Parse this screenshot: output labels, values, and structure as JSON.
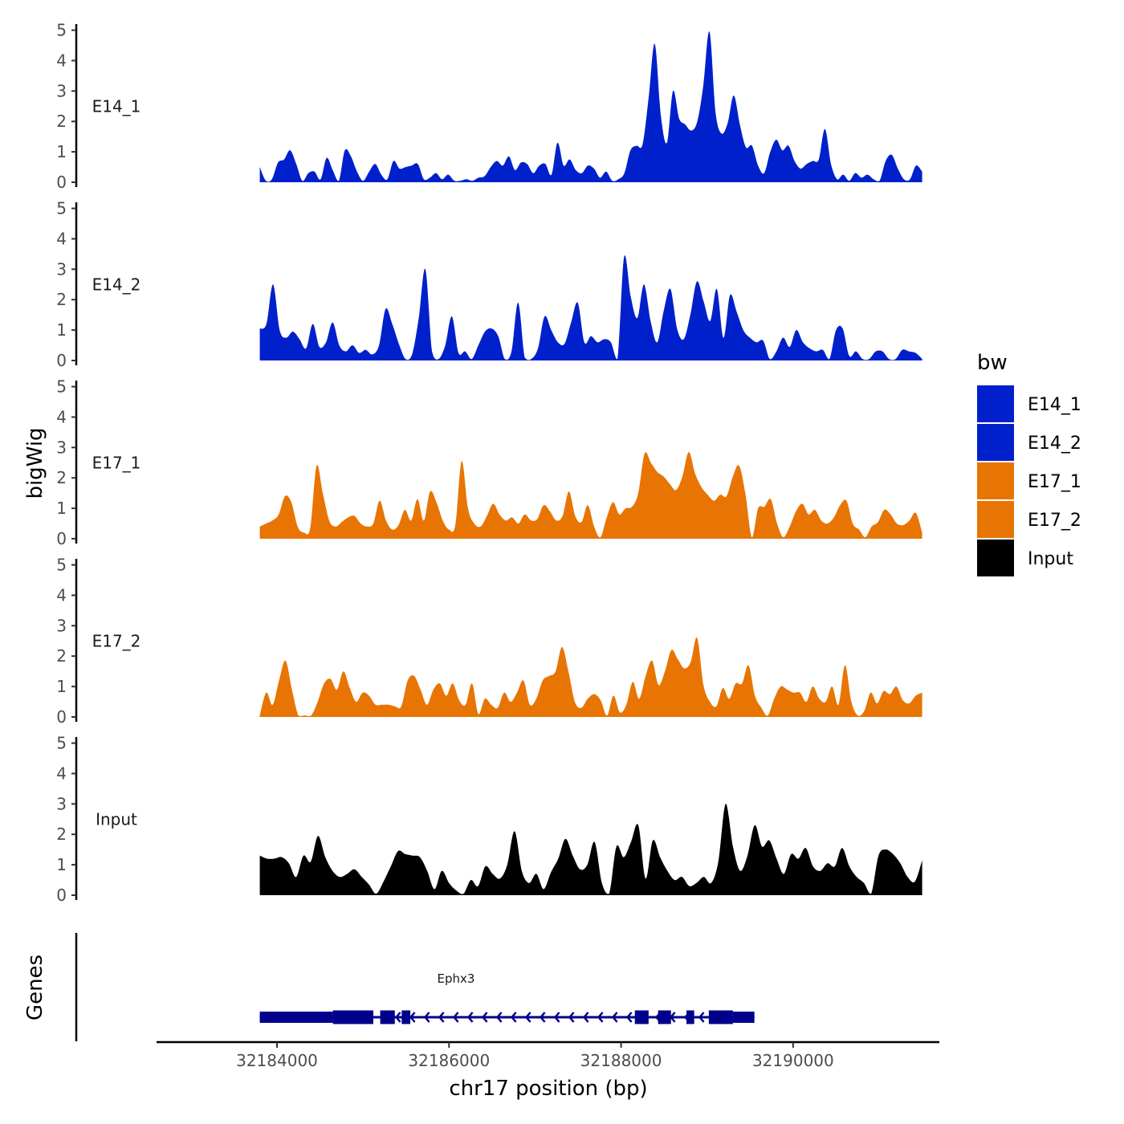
{
  "chart_data": {
    "type": "area",
    "chromosome": "chr17",
    "x_range": [
      32183800,
      32191500
    ],
    "xlim": [
      32182600,
      32191700
    ],
    "ylim": [
      0,
      5.2
    ],
    "y_ticks": [
      "0",
      "1",
      "2",
      "3",
      "4",
      "5"
    ],
    "x_ticks": [
      {
        "value": 32184000,
        "label": "32184000"
      },
      {
        "value": 32186000,
        "label": "32186000"
      },
      {
        "value": 32188000,
        "label": "32188000"
      },
      {
        "value": 32190000,
        "label": "32190000"
      }
    ],
    "ylabel": "bigWig",
    "genes_label": "Genes",
    "xlabel": "chr17 position (bp)",
    "legend": {
      "title": "bw",
      "entries": [
        {
          "label": "E14_1",
          "color": "#0020CC"
        },
        {
          "label": "E14_2",
          "color": "#0020CC"
        },
        {
          "label": "E17_1",
          "color": "#E87503"
        },
        {
          "label": "E17_2",
          "color": "#E87503"
        },
        {
          "label": "Input",
          "color": "#000000"
        }
      ]
    },
    "tracks": [
      {
        "name": "E14_1",
        "color": "#0020CC",
        "values": [
          0.5,
          0.05,
          0.1,
          0.65,
          0.75,
          1.05,
          0.6,
          0.05,
          0.3,
          0.35,
          0.1,
          0.8,
          0.4,
          0.05,
          1.05,
          0.85,
          0.35,
          0.05,
          0.35,
          0.6,
          0.25,
          0.1,
          0.7,
          0.45,
          0.5,
          0.55,
          0.6,
          0.1,
          0.15,
          0.3,
          0.1,
          0.25,
          0.05,
          0.05,
          0.1,
          0.05,
          0.15,
          0.2,
          0.5,
          0.7,
          0.55,
          0.85,
          0.4,
          0.65,
          0.6,
          0.3,
          0.55,
          0.6,
          0.25,
          1.3,
          0.55,
          0.75,
          0.4,
          0.3,
          0.55,
          0.45,
          0.15,
          0.35,
          0.05,
          0.1,
          0.3,
          1.05,
          1.2,
          1.25,
          2.8,
          4.55,
          2.2,
          1.3,
          3.0,
          2.1,
          1.9,
          1.7,
          2.0,
          3.2,
          4.95,
          2.3,
          1.6,
          1.95,
          2.85,
          1.9,
          1.15,
          1.2,
          0.55,
          0.3,
          1.0,
          1.4,
          1.05,
          1.2,
          0.7,
          0.45,
          0.6,
          0.7,
          0.75,
          1.75,
          0.6,
          0.1,
          0.25,
          0.05,
          0.3,
          0.15,
          0.25,
          0.1,
          0.05,
          0.7,
          0.9,
          0.45,
          0.1,
          0.1,
          0.55,
          0.35
        ]
      },
      {
        "name": "E14_2",
        "color": "#0020CC",
        "values": [
          1.05,
          1.2,
          2.5,
          1.0,
          0.75,
          0.95,
          0.7,
          0.4,
          1.2,
          0.45,
          0.6,
          1.25,
          0.5,
          0.3,
          0.5,
          0.25,
          0.35,
          0.2,
          0.5,
          1.7,
          1.2,
          0.55,
          0.05,
          0.2,
          1.4,
          3.0,
          0.3,
          0.05,
          0.5,
          1.45,
          0.25,
          0.3,
          0.05,
          0.5,
          0.95,
          1.05,
          0.8,
          0.05,
          0.3,
          1.9,
          0.1,
          0.05,
          0.4,
          1.45,
          1.0,
          0.6,
          0.55,
          1.25,
          1.9,
          0.6,
          0.8,
          0.6,
          0.7,
          0.6,
          0.05,
          3.4,
          2.1,
          1.4,
          2.5,
          1.3,
          0.6,
          1.65,
          2.35,
          1.05,
          0.7,
          1.5,
          2.6,
          1.95,
          1.3,
          2.35,
          0.75,
          2.15,
          1.6,
          1.0,
          0.75,
          0.6,
          0.65,
          0.05,
          0.3,
          0.75,
          0.45,
          1.0,
          0.6,
          0.4,
          0.3,
          0.35,
          0.05,
          1.0,
          1.05,
          0.15,
          0.3,
          0.05,
          0.05,
          0.3,
          0.3,
          0.05,
          0.05,
          0.35,
          0.3,
          0.25,
          0.05
        ]
      },
      {
        "name": "E17_1",
        "color": "#E87503",
        "values": [
          0.4,
          0.5,
          0.6,
          0.8,
          1.4,
          1.2,
          0.4,
          0.2,
          0.35,
          2.4,
          1.5,
          0.6,
          0.4,
          0.55,
          0.7,
          0.75,
          0.5,
          0.4,
          0.5,
          1.25,
          0.6,
          0.3,
          0.45,
          0.95,
          0.6,
          1.3,
          0.6,
          1.55,
          1.2,
          0.6,
          0.3,
          0.45,
          2.55,
          1.0,
          0.5,
          0.4,
          0.75,
          1.15,
          0.8,
          0.6,
          0.7,
          0.5,
          0.8,
          0.6,
          0.65,
          1.1,
          0.9,
          0.6,
          0.75,
          1.55,
          0.75,
          0.55,
          1.1,
          0.4,
          0.05,
          0.7,
          1.2,
          0.8,
          1.0,
          1.05,
          1.5,
          2.8,
          2.5,
          2.2,
          2.05,
          1.8,
          1.6,
          2.05,
          2.85,
          2.15,
          1.7,
          1.45,
          1.25,
          1.45,
          1.4,
          2.05,
          2.4,
          1.45,
          0.05,
          1.0,
          1.05,
          1.3,
          0.5,
          0.05,
          0.4,
          0.9,
          1.15,
          0.8,
          0.95,
          0.6,
          0.5,
          0.7,
          1.1,
          1.25,
          0.5,
          0.3,
          0.05,
          0.4,
          0.55,
          0.95,
          0.8,
          0.5,
          0.45,
          0.6,
          0.85,
          0.2
        ]
      },
      {
        "name": "E17_2",
        "color": "#E87503",
        "values": [
          0.05,
          0.8,
          0.4,
          1.2,
          1.85,
          0.9,
          0.05,
          0.05,
          0.05,
          0.5,
          1.1,
          1.25,
          0.9,
          1.5,
          0.95,
          0.5,
          0.8,
          0.7,
          0.4,
          0.4,
          0.4,
          0.35,
          0.35,
          1.2,
          1.35,
          0.9,
          0.4,
          0.9,
          1.1,
          0.7,
          1.1,
          0.55,
          0.4,
          1.1,
          0.1,
          0.6,
          0.4,
          0.3,
          0.8,
          0.5,
          0.8,
          1.2,
          0.4,
          0.6,
          1.2,
          1.35,
          1.5,
          2.3,
          1.5,
          0.5,
          0.3,
          0.6,
          0.75,
          0.55,
          0.05,
          0.7,
          0.15,
          0.4,
          1.15,
          0.6,
          1.35,
          1.85,
          1.05,
          1.5,
          2.2,
          1.9,
          1.6,
          1.8,
          2.6,
          1.05,
          0.5,
          0.35,
          0.95,
          0.6,
          1.1,
          1.1,
          1.7,
          0.7,
          0.3,
          0.05,
          0.6,
          1.0,
          0.9,
          0.8,
          0.8,
          0.5,
          1.0,
          0.6,
          0.5,
          1.0,
          0.4,
          1.7,
          0.5,
          0.05,
          0.2,
          0.8,
          0.45,
          0.85,
          0.75,
          1.0,
          0.55,
          0.45,
          0.7,
          0.8
        ]
      },
      {
        "name": "Input",
        "color": "#000000",
        "values": [
          1.3,
          1.2,
          1.2,
          1.25,
          1.05,
          0.6,
          1.3,
          1.1,
          1.95,
          1.25,
          0.8,
          0.6,
          0.7,
          0.85,
          0.6,
          0.35,
          0.05,
          0.45,
          0.95,
          1.45,
          1.35,
          1.3,
          1.25,
          0.8,
          0.2,
          0.8,
          0.4,
          0.15,
          0.05,
          0.5,
          0.3,
          0.95,
          0.7,
          0.55,
          1.0,
          2.1,
          0.8,
          0.4,
          0.7,
          0.2,
          0.75,
          1.2,
          1.85,
          1.3,
          0.85,
          1.0,
          1.75,
          0.4,
          0.05,
          1.6,
          1.25,
          1.75,
          2.3,
          0.55,
          1.8,
          1.25,
          0.8,
          0.5,
          0.6,
          0.3,
          0.4,
          0.6,
          0.4,
          1.1,
          3.0,
          1.6,
          0.8,
          1.3,
          2.3,
          1.6,
          1.8,
          1.2,
          0.7,
          1.35,
          1.2,
          1.55,
          0.95,
          0.8,
          1.05,
          0.95,
          1.55,
          0.95,
          0.6,
          0.4,
          0.05,
          1.3,
          1.5,
          1.35,
          1.05,
          0.6,
          0.45,
          1.15
        ]
      }
    ],
    "gene": {
      "name": "Ephx3",
      "color": "#00008B",
      "strand": "-",
      "start": 32183800,
      "end": 32189550,
      "exons": [
        {
          "start": 32183800,
          "end": 32184650,
          "type": "utr"
        },
        {
          "start": 32184650,
          "end": 32185120,
          "type": "cds"
        },
        {
          "start": 32185200,
          "end": 32185370,
          "type": "cds"
        },
        {
          "start": 32185450,
          "end": 32185550,
          "type": "cds"
        },
        {
          "start": 32188160,
          "end": 32188320,
          "type": "cds"
        },
        {
          "start": 32188430,
          "end": 32188580,
          "type": "cds"
        },
        {
          "start": 32188760,
          "end": 32188850,
          "type": "cds"
        },
        {
          "start": 32189020,
          "end": 32189300,
          "type": "cds"
        },
        {
          "start": 32189300,
          "end": 32189550,
          "type": "utr"
        }
      ]
    }
  }
}
